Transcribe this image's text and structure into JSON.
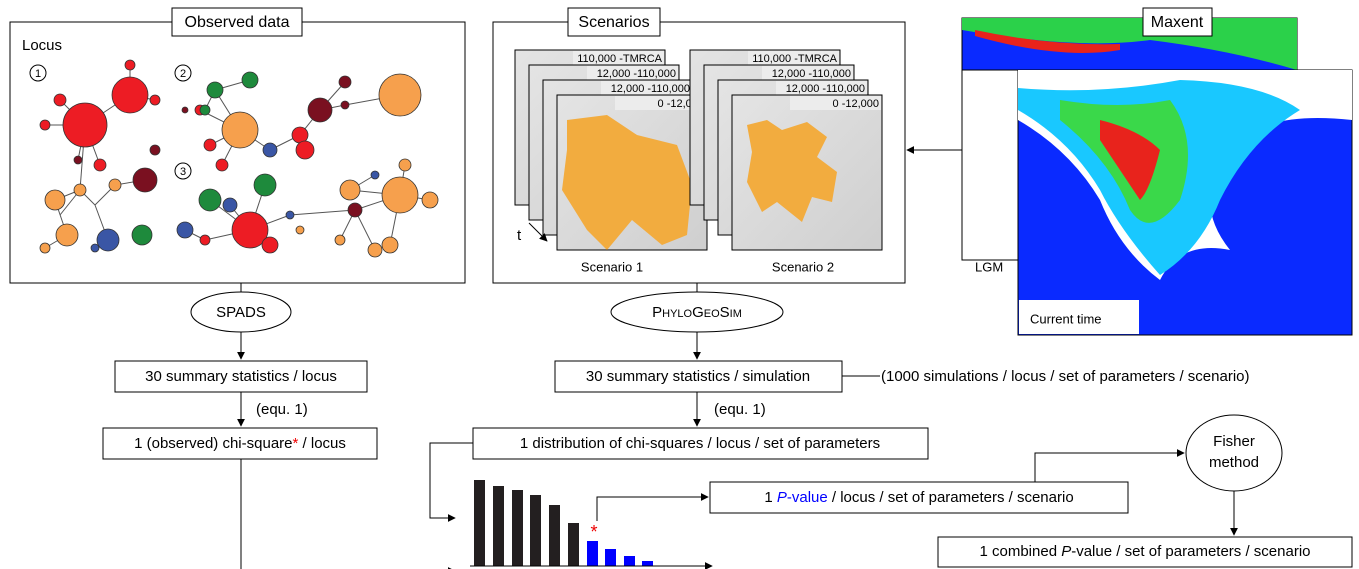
{
  "observed_data": {
    "title": "Observed data",
    "locus_label": "Locus",
    "loci": [
      "1",
      "2",
      "3"
    ]
  },
  "scenarios": {
    "title": "Scenarios",
    "periods": [
      "110,000 -TMRCA",
      "12,000 -110,000",
      "12,000 -110,000",
      "0 -12,000"
    ],
    "time_label": "t",
    "labels": [
      "Scenario 1",
      "Scenario 2"
    ]
  },
  "maxent": {
    "title": "Maxent",
    "layers": [
      "LGM",
      "Current time"
    ]
  },
  "spads": {
    "label": "SPADS",
    "summary": "30 summary statistics / locus",
    "equation": "(equ. 1)",
    "chi_square": {
      "prefix": "1 (observed) chi-square",
      "asterisk": "*",
      "suffix": " / locus"
    }
  },
  "phylogeosim": {
    "label": "PhyloGeoSim",
    "summary": "30 summary statistics / simulation",
    "note": "(1000 simulations / locus / set of parameters / scenario)",
    "equation": "(equ. 1)",
    "distribution": "1 distribution of chi-squares / locus / set of parameters"
  },
  "histogram": {
    "asterisk": "*"
  },
  "p_value": {
    "prefix": "1 ",
    "italic": "P",
    "highlight": "-value",
    "suffix": " / locus / set of parameters / scenario"
  },
  "fisher": {
    "lines": [
      "Fisher",
      "method"
    ]
  },
  "combined": {
    "prefix": "1 combined ",
    "italic": "P",
    "suffix": "-value / set of parameters / scenario"
  }
}
